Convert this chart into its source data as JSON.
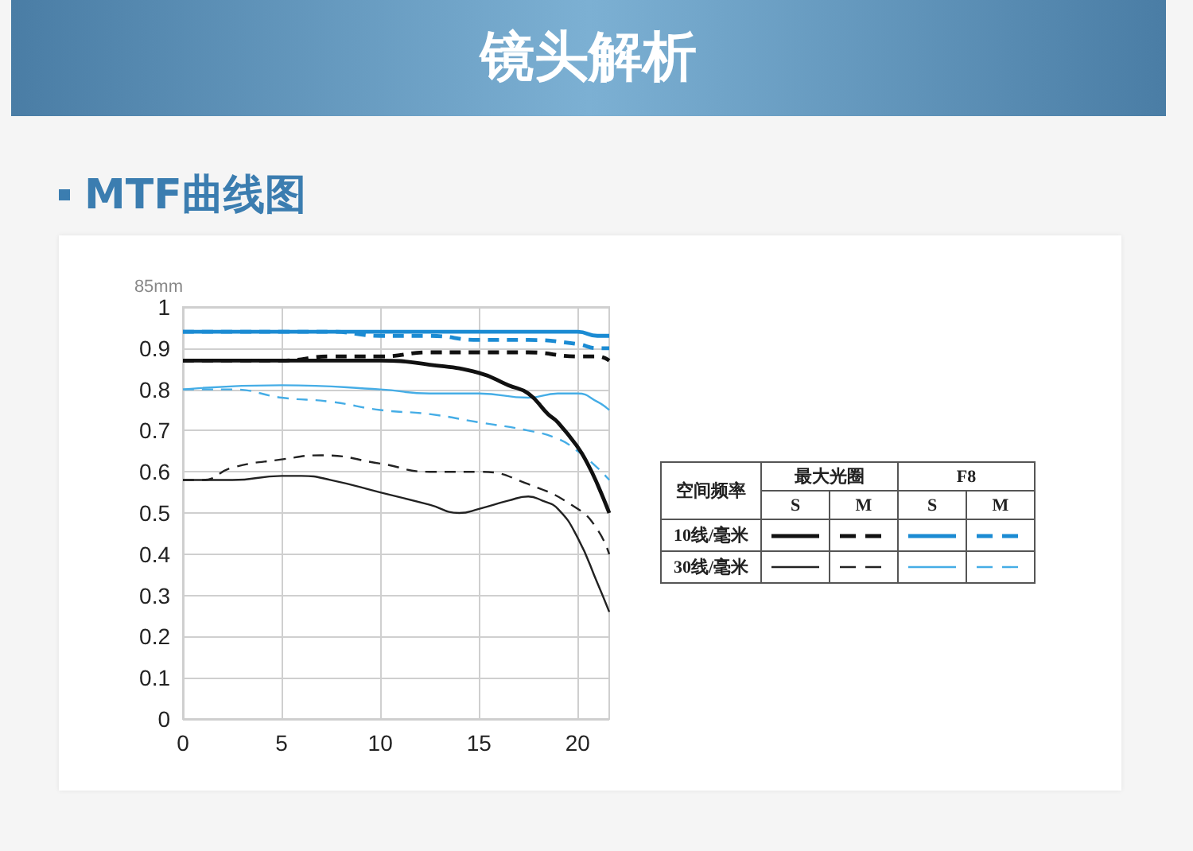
{
  "chart_data": {
    "type": "line",
    "title": "镜头解析",
    "subtitle": "MTF曲线图",
    "ylabel": "85mm",
    "legend_title": "空间频率",
    "annotations": [
      "最大光圈",
      "F8",
      "S",
      "M",
      "S",
      "M",
      "10线/毫米",
      "30线/毫米"
    ],
    "xlim": [
      0,
      21.6
    ],
    "xticks": [
      0,
      5,
      10,
      15,
      20
    ],
    "ylim": [
      0,
      1
    ],
    "yticks": [
      0,
      0.1,
      0.2,
      0.3,
      0.4,
      0.5,
      0.6,
      0.7,
      0.8,
      0.9,
      1
    ],
    "grid": true,
    "marker": "none",
    "series": [
      {
        "color": "#111111",
        "line_style": "solid",
        "x": [
          0,
          2.5,
          5,
          7.5,
          10,
          12.5,
          15,
          16.5,
          17.5,
          18.5,
          19,
          20,
          20.5,
          21,
          21.6
        ],
        "values": [
          0.87,
          0.87,
          0.87,
          0.87,
          0.87,
          0.86,
          0.84,
          0.81,
          0.79,
          0.74,
          0.72,
          0.66,
          0.62,
          0.57,
          0.5
        ]
      },
      {
        "color": "#111111",
        "line_style": "dashed",
        "x": [
          0,
          2.5,
          5,
          7.5,
          10,
          12.5,
          15,
          17.5,
          20,
          21,
          21.6
        ],
        "values": [
          0.87,
          0.87,
          0.87,
          0.88,
          0.88,
          0.89,
          0.89,
          0.89,
          0.88,
          0.88,
          0.87
        ]
      },
      {
        "color": "#1b8bd3",
        "line_style": "solid",
        "x": [
          0,
          5,
          10,
          15,
          20,
          21,
          21.6
        ],
        "values": [
          0.94,
          0.94,
          0.94,
          0.94,
          0.94,
          0.93,
          0.93
        ]
      },
      {
        "color": "#1b8bd3",
        "line_style": "dashed",
        "x": [
          0,
          2.5,
          5,
          7.5,
          10,
          12.5,
          15,
          17.5,
          20,
          21,
          21.6
        ],
        "values": [
          0.94,
          0.94,
          0.94,
          0.94,
          0.93,
          0.93,
          0.92,
          0.92,
          0.91,
          0.9,
          0.9
        ]
      },
      {
        "color": "#222222",
        "line_style": "solid",
        "x": [
          0,
          2.5,
          5,
          6,
          7.5,
          10,
          12.5,
          14,
          15,
          16.5,
          17.5,
          18.2,
          19,
          20,
          21,
          21.6
        ],
        "values": [
          0.58,
          0.58,
          0.59,
          0.59,
          0.58,
          0.55,
          0.52,
          0.5,
          0.51,
          0.53,
          0.54,
          0.53,
          0.51,
          0.44,
          0.33,
          0.26
        ]
      },
      {
        "color": "#222222",
        "line_style": "dashed",
        "x": [
          0,
          1,
          2.5,
          5,
          7,
          10,
          12.5,
          15,
          17.5,
          20,
          21,
          21.6
        ],
        "values": [
          0.58,
          0.58,
          0.61,
          0.63,
          0.64,
          0.62,
          0.6,
          0.6,
          0.57,
          0.51,
          0.46,
          0.4
        ]
      },
      {
        "color": "#45ade6",
        "line_style": "solid",
        "x": [
          0,
          5,
          10,
          12.5,
          15,
          17.5,
          19,
          20,
          21,
          21.6
        ],
        "values": [
          0.8,
          0.81,
          0.8,
          0.79,
          0.79,
          0.78,
          0.79,
          0.79,
          0.77,
          0.75
        ]
      },
      {
        "color": "#45ade6",
        "line_style": "dashed",
        "x": [
          0,
          2.5,
          5,
          7.5,
          10,
          12.5,
          15,
          17.5,
          19,
          20,
          21,
          21.6
        ],
        "values": [
          0.8,
          0.8,
          0.78,
          0.77,
          0.75,
          0.74,
          0.72,
          0.7,
          0.68,
          0.65,
          0.61,
          0.58
        ]
      }
    ]
  }
}
